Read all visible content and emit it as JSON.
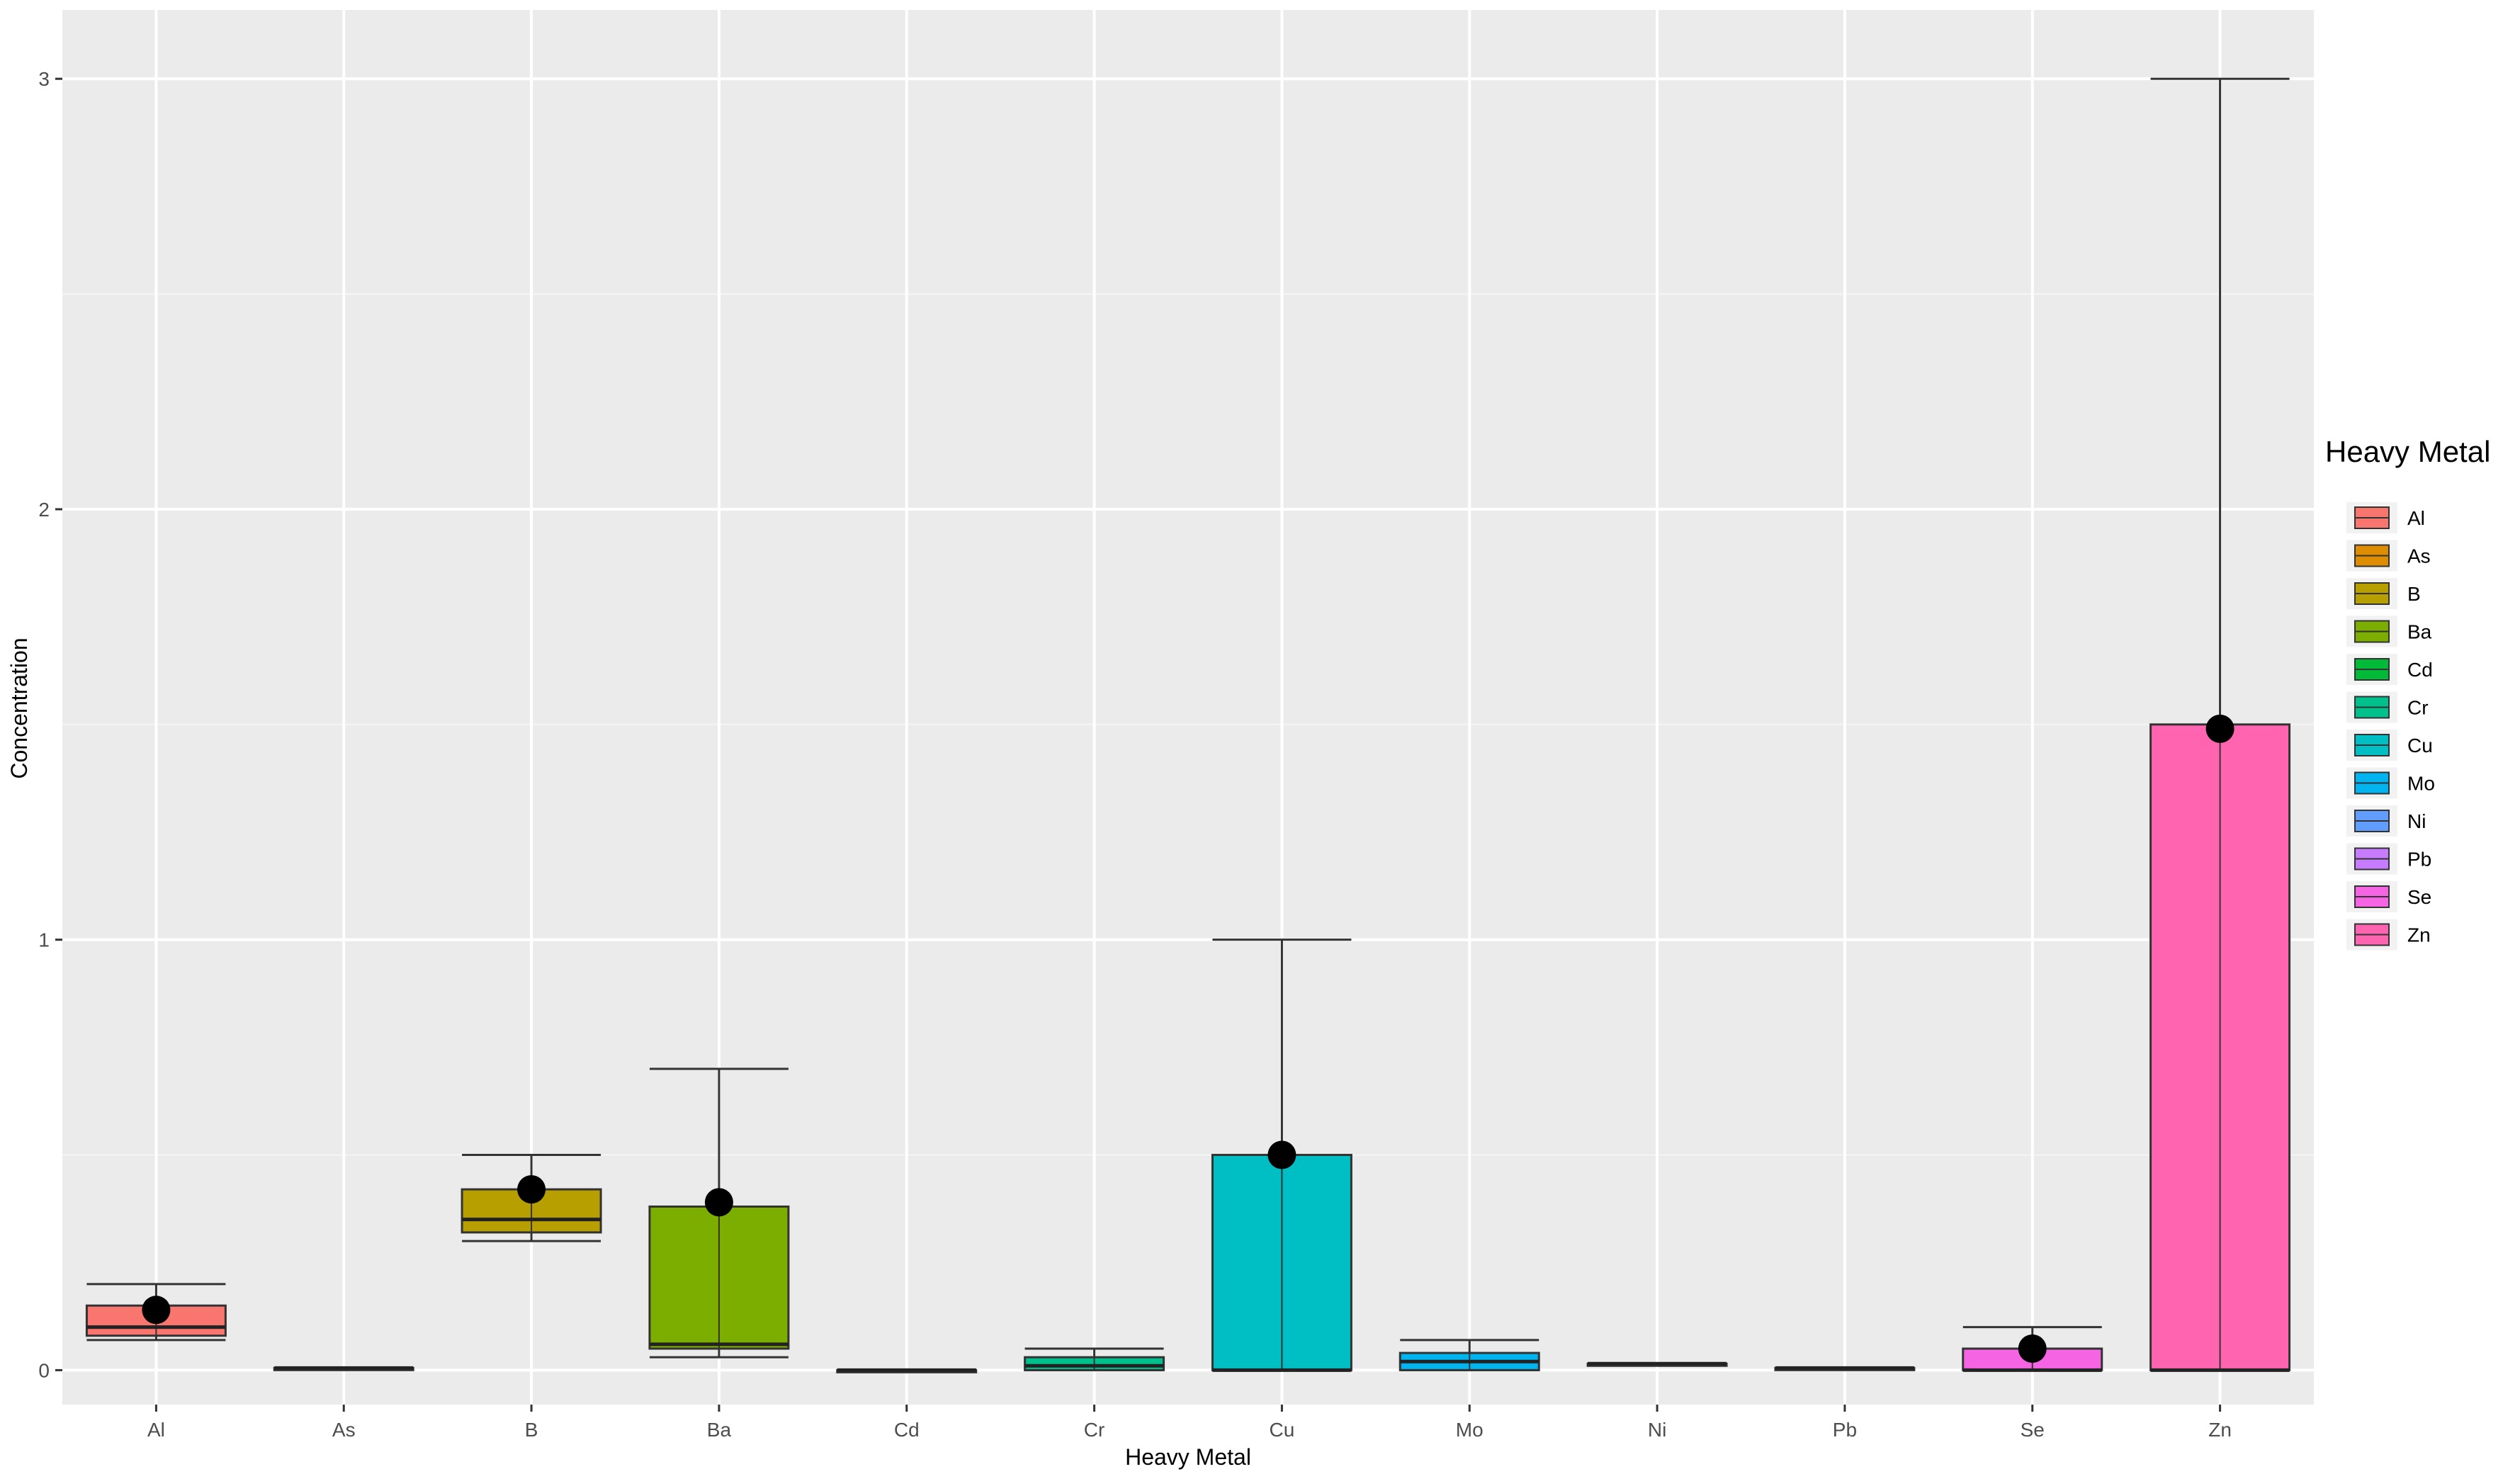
{
  "chart_data": {
    "type": "box",
    "title": "",
    "xlabel": "Heavy Metal",
    "ylabel": "Concentration",
    "ylim": [
      -0.08,
      3.16
    ],
    "yticks": [
      0,
      1,
      2,
      3
    ],
    "ytick_labels": [
      "0",
      "1",
      "2",
      "3"
    ],
    "grid": true,
    "legend": {
      "title": "Heavy Metal",
      "position": "right"
    },
    "categories": [
      "Al",
      "As",
      "B",
      "Ba",
      "Cd",
      "Cr",
      "Cu",
      "Mo",
      "Ni",
      "Pb",
      "Se",
      "Zn"
    ],
    "series": [
      {
        "name": "Al",
        "color": "#F8766D",
        "min": 0.07,
        "q1": 0.08,
        "median": 0.1,
        "q3": 0.15,
        "max": 0.2,
        "mean": 0.14
      },
      {
        "name": "As",
        "color": "#DE8C00",
        "min": 0.005,
        "q1": 0.005,
        "median": 0.005,
        "q3": 0.005,
        "max": 0.005,
        "mean": null
      },
      {
        "name": "B",
        "color": "#B79F00",
        "min": 0.3,
        "q1": 0.32,
        "median": 0.35,
        "q3": 0.42,
        "max": 0.5,
        "mean": 0.42
      },
      {
        "name": "Ba",
        "color": "#7CAE00",
        "min": 0.03,
        "q1": 0.05,
        "median": 0.06,
        "q3": 0.38,
        "max": 0.7,
        "mean": 0.39
      },
      {
        "name": "Cd",
        "color": "#00BA38",
        "min": 0.0,
        "q1": 0.0,
        "median": 0.0,
        "q3": 0.0,
        "max": 0.0,
        "mean": null
      },
      {
        "name": "Cr",
        "color": "#00C08B",
        "min": 0.0,
        "q1": 0.0,
        "median": 0.01,
        "q3": 0.03,
        "max": 0.05,
        "mean": null
      },
      {
        "name": "Cu",
        "color": "#00BFC4",
        "min": 0.0,
        "q1": 0.0,
        "median": 0.0,
        "q3": 0.5,
        "max": 1.0,
        "mean": 0.5
      },
      {
        "name": "Mo",
        "color": "#00B4F0",
        "min": 0.0,
        "q1": 0.0,
        "median": 0.02,
        "q3": 0.04,
        "max": 0.07,
        "mean": null
      },
      {
        "name": "Ni",
        "color": "#619CFF",
        "min": 0.015,
        "q1": 0.015,
        "median": 0.015,
        "q3": 0.015,
        "max": 0.015,
        "mean": null
      },
      {
        "name": "Pb",
        "color": "#C77CFF",
        "min": 0.005,
        "q1": 0.005,
        "median": 0.005,
        "q3": 0.005,
        "max": 0.005,
        "mean": null
      },
      {
        "name": "Se",
        "color": "#F564E3",
        "min": 0.0,
        "q1": 0.0,
        "median": 0.0,
        "q3": 0.05,
        "max": 0.1,
        "mean": 0.05
      },
      {
        "name": "Zn",
        "color": "#FF64B0",
        "min": 0.0,
        "q1": 0.0,
        "median": 0.0,
        "q3": 1.5,
        "max": 3.0,
        "mean": 1.49
      }
    ]
  }
}
